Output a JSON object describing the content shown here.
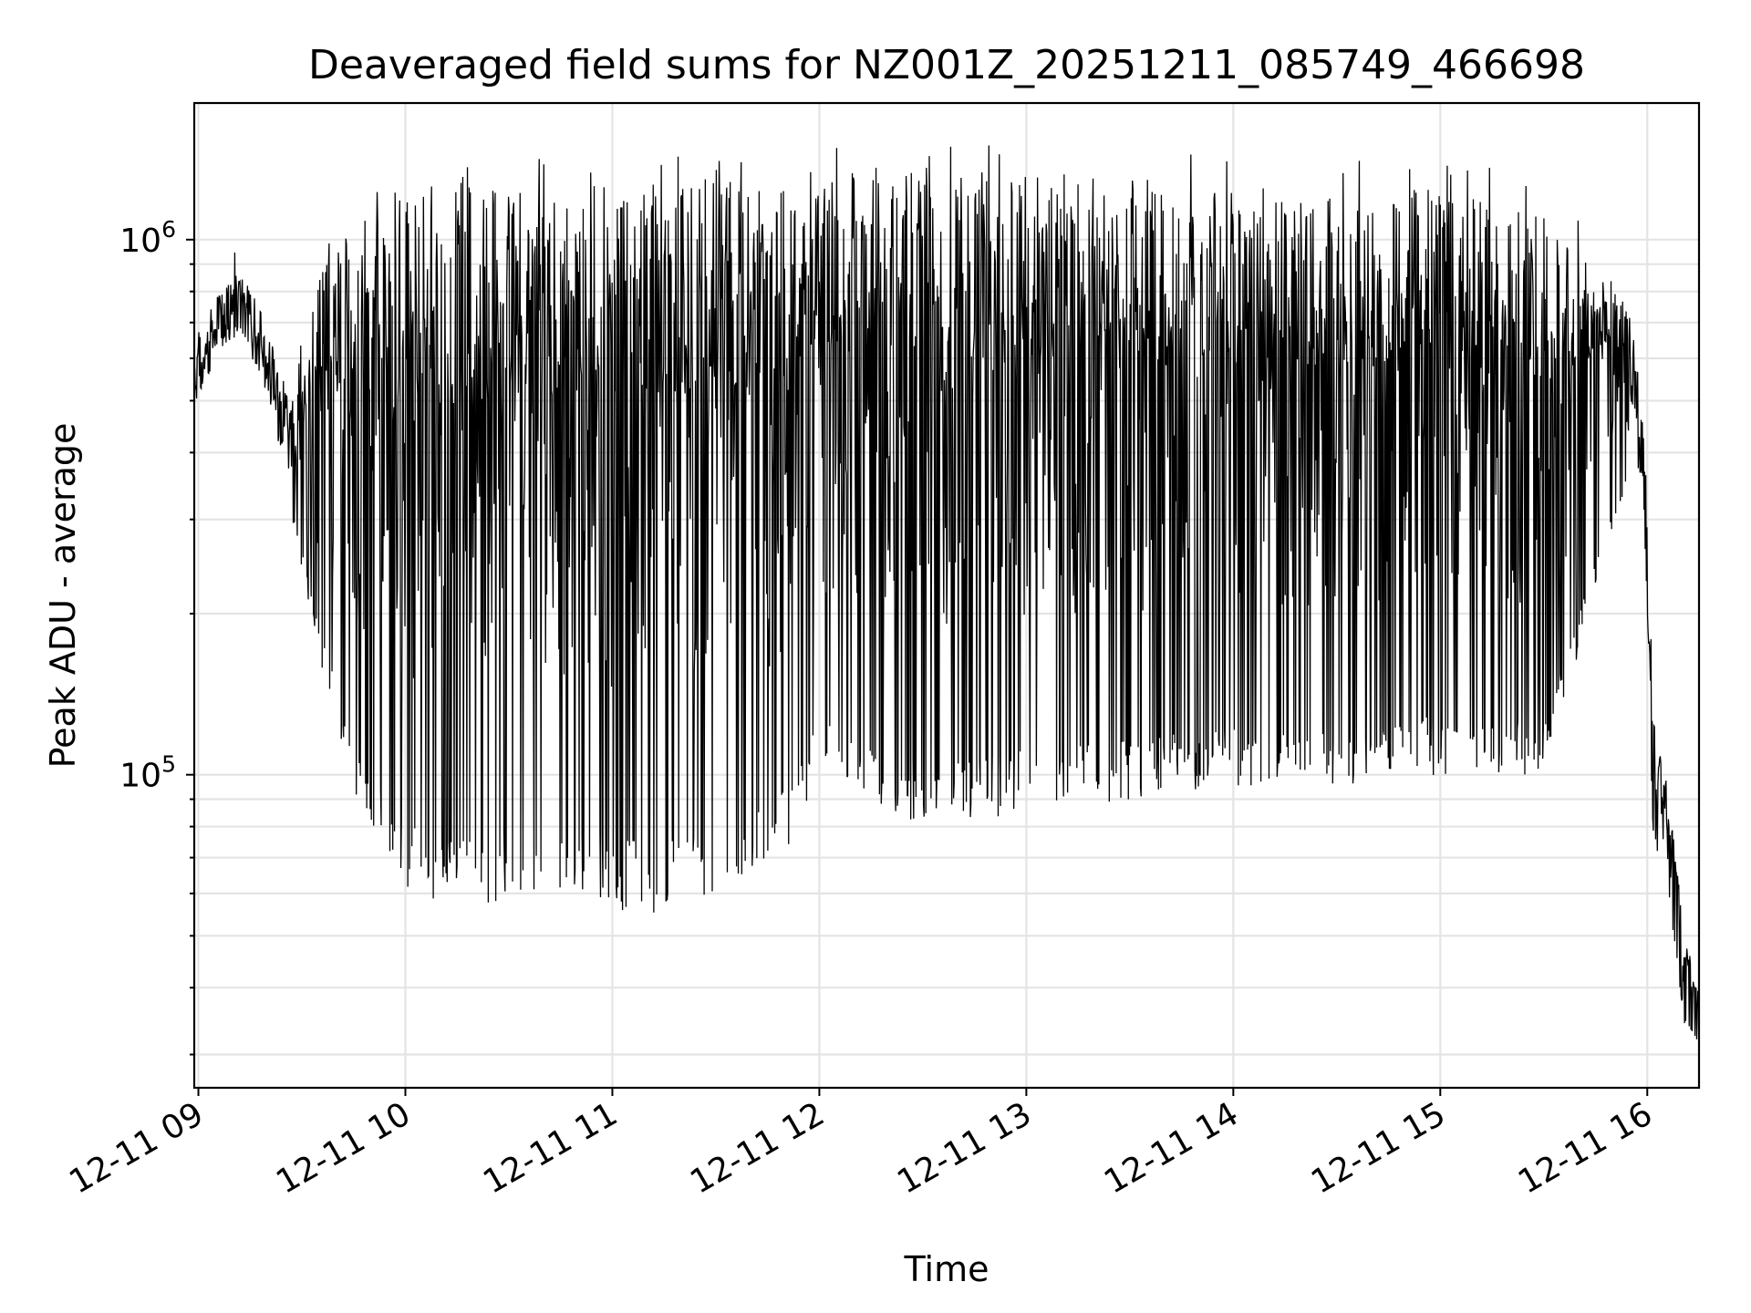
{
  "chart_data": {
    "type": "line",
    "title": "Deaveraged field sums for NZ001Z_20251211_085749_466698",
    "xlabel": "Time",
    "ylabel": "Peak ADU - average",
    "yscale": "log",
    "ylim": [
      26000,
      1800000
    ],
    "xlim_hours": [
      8.98,
      16.25
    ],
    "grid": "on",
    "x_ticks": [
      {
        "hour": 9,
        "label": "12-11 09"
      },
      {
        "hour": 10,
        "label": "12-11 10"
      },
      {
        "hour": 11,
        "label": "12-11 11"
      },
      {
        "hour": 12,
        "label": "12-11 12"
      },
      {
        "hour": 13,
        "label": "12-11 13"
      },
      {
        "hour": 14,
        "label": "12-11 14"
      },
      {
        "hour": 15,
        "label": "12-11 15"
      },
      {
        "hour": 16,
        "label": "12-11 16"
      }
    ],
    "y_ticks": [
      {
        "value": 100000,
        "base": "10",
        "exp": "5"
      },
      {
        "value": 1000000,
        "base": "10",
        "exp": "6"
      }
    ],
    "series": [
      {
        "name": "Deaveraged field sum",
        "color": "#000000",
        "envelope": {
          "hours": [
            8.98,
            9.1,
            9.2,
            9.3,
            9.45,
            9.6,
            9.8,
            10.0,
            10.2,
            10.5,
            10.8,
            11.0,
            11.2,
            11.4,
            11.6,
            11.8,
            12.0,
            12.5,
            13.0,
            13.5,
            14.0,
            14.5,
            15.0,
            15.5,
            15.9,
            15.98,
            16.03,
            16.1,
            16.18,
            16.25
          ],
          "upper": [
            650000,
            800000,
            900000,
            750000,
            500000,
            900000,
            1100000,
            1200000,
            1250000,
            1250000,
            1300000,
            1300000,
            1300000,
            1350000,
            1300000,
            1300000,
            1350000,
            1400000,
            1350000,
            1300000,
            1250000,
            1250000,
            1250000,
            1150000,
            800000,
            500000,
            130000,
            95000,
            50000,
            40000
          ],
          "lower": [
            450000,
            550000,
            600000,
            500000,
            300000,
            150000,
            80000,
            62000,
            55000,
            58000,
            60000,
            56000,
            54000,
            56000,
            60000,
            66000,
            100000,
            80000,
            85000,
            90000,
            95000,
            95000,
            100000,
            100000,
            350000,
            300000,
            75000,
            60000,
            34000,
            31000
          ]
        }
      }
    ]
  }
}
